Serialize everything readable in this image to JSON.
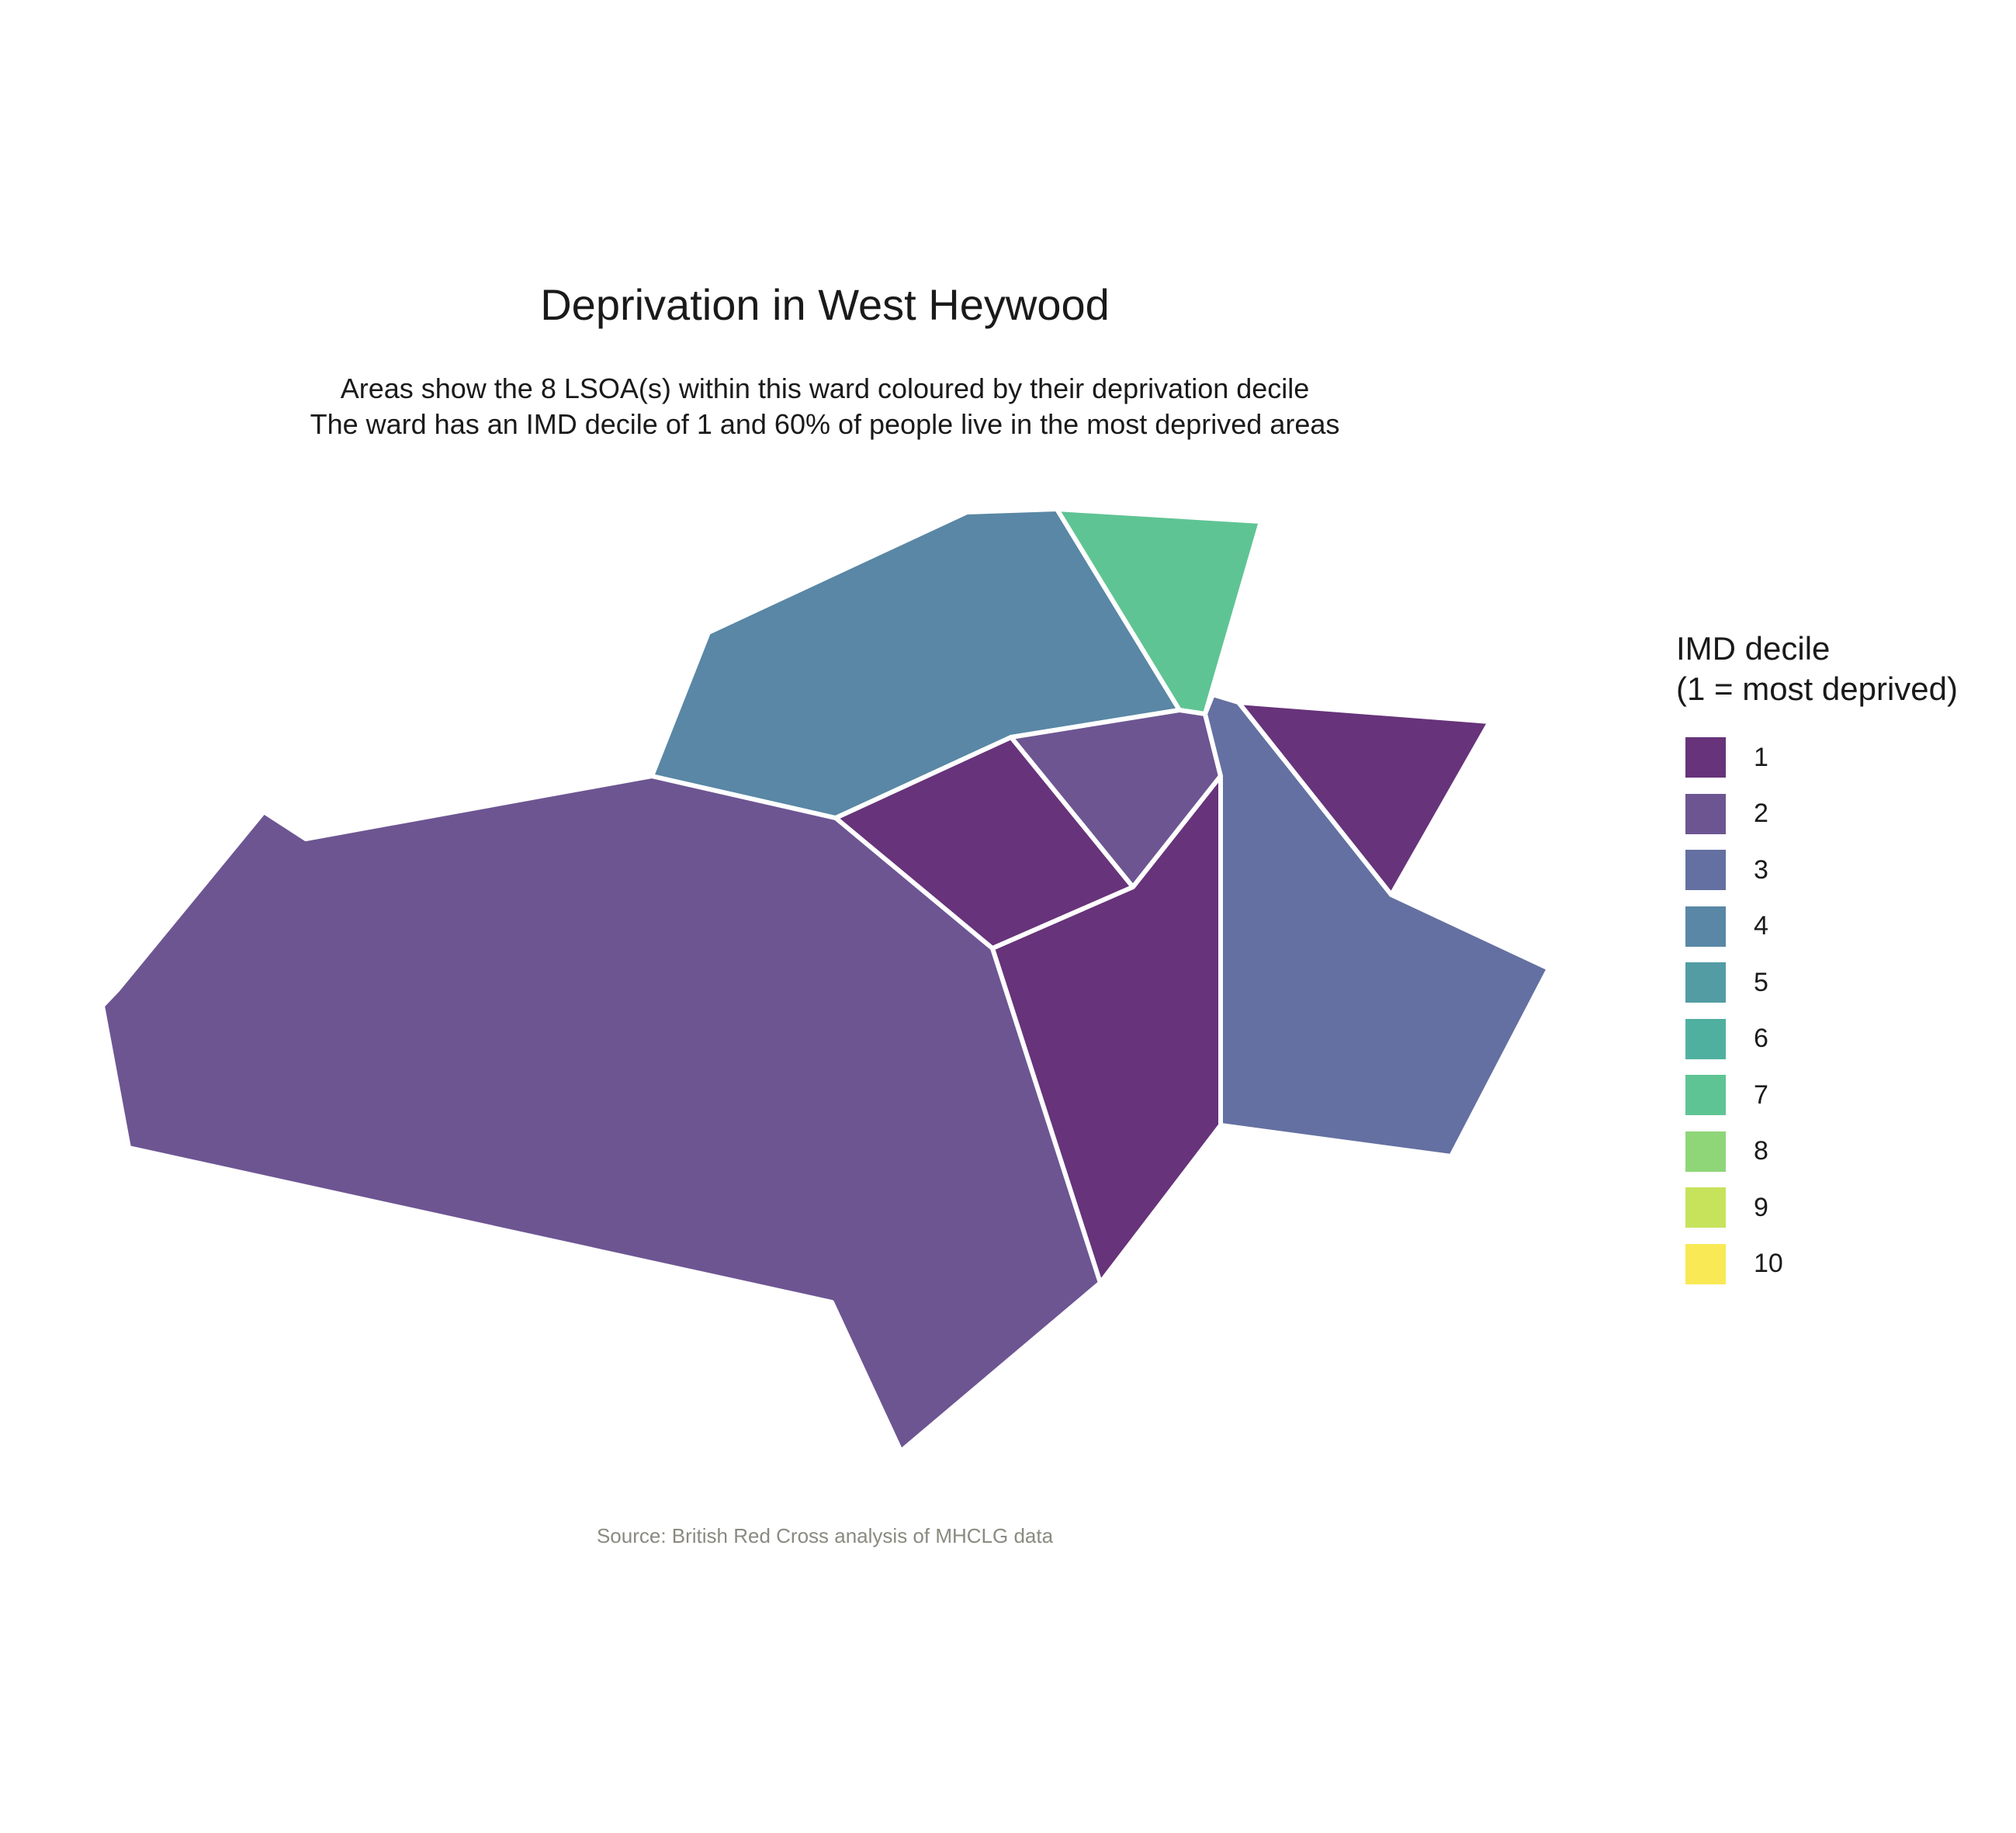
{
  "title": "Deprivation in West Heywood",
  "subtitle": {
    "line1": "Areas show the 8 LSOA(s) within this ward coloured by their deprivation decile",
    "line2": "The ward has an IMD decile of 1 and 60% of people live in the most deprived areas"
  },
  "caption": "Source: British Red Cross analysis of MHCLG data",
  "legend": {
    "title_line1": "IMD decile",
    "title_line2": "(1 = most deprived)",
    "items": [
      {
        "label": "1",
        "color": "#67337a"
      },
      {
        "label": "2",
        "color": "#6d5592"
      },
      {
        "label": "3",
        "color": "#6470a1"
      },
      {
        "label": "4",
        "color": "#5987a5"
      },
      {
        "label": "5",
        "color": "#539ca4"
      },
      {
        "label": "6",
        "color": "#50b0a0"
      },
      {
        "label": "7",
        "color": "#5fc493"
      },
      {
        "label": "8",
        "color": "#8fd679"
      },
      {
        "label": "9",
        "color": "#c7e35b"
      },
      {
        "label": "10",
        "color": "#f9e955"
      }
    ]
  },
  "chart_data": {
    "type": "choropleth",
    "ward": "West Heywood",
    "lsoa_count": 8,
    "ward_imd_decile": 1,
    "percent_in_most_deprived": 60,
    "areas": [
      {
        "id": "lsoa-west-large",
        "decile": 2
      },
      {
        "id": "lsoa-north",
        "decile": 4
      },
      {
        "id": "lsoa-north-east",
        "decile": 7
      },
      {
        "id": "lsoa-centre",
        "decile": 1
      },
      {
        "id": "lsoa-centre-east",
        "decile": 2
      },
      {
        "id": "lsoa-south-centre",
        "decile": 1
      },
      {
        "id": "lsoa-east",
        "decile": 3
      },
      {
        "id": "lsoa-far-east",
        "decile": 1
      }
    ]
  }
}
